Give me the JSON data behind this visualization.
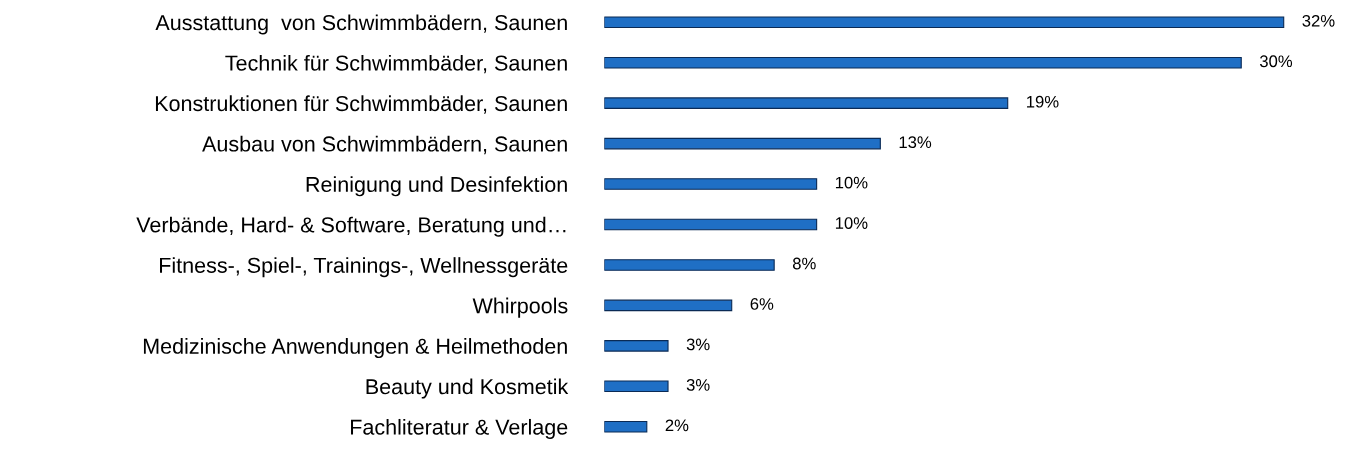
{
  "chart_data": {
    "type": "bar",
    "orientation": "horizontal",
    "categories": [
      "Ausstattung  von Schwimmbädern, Saunen",
      "Technik für Schwimmbäder, Saunen",
      "Konstruktionen für Schwimmbäder, Saunen",
      "Ausbau von Schwimmbädern, Saunen",
      "Reinigung und Desinfektion",
      "Verbände, Hard- & Software, Beratung und…",
      "Fitness-, Spiel-, Trainings-, Wellnessgeräte",
      "Whirpools",
      "Medizinische Anwendungen & Heilmethoden",
      "Beauty und Kosmetik",
      "Fachliteratur & Verlage"
    ],
    "values": [
      32,
      30,
      19,
      13,
      10,
      10,
      8,
      6,
      3,
      3,
      2
    ],
    "value_labels": [
      "32%",
      "30%",
      "19%",
      "13%",
      "10%",
      "10%",
      "8%",
      "6%",
      "3%",
      "3%",
      "2%"
    ],
    "color": "#1f6fc5",
    "grid": false,
    "legend": false
  }
}
